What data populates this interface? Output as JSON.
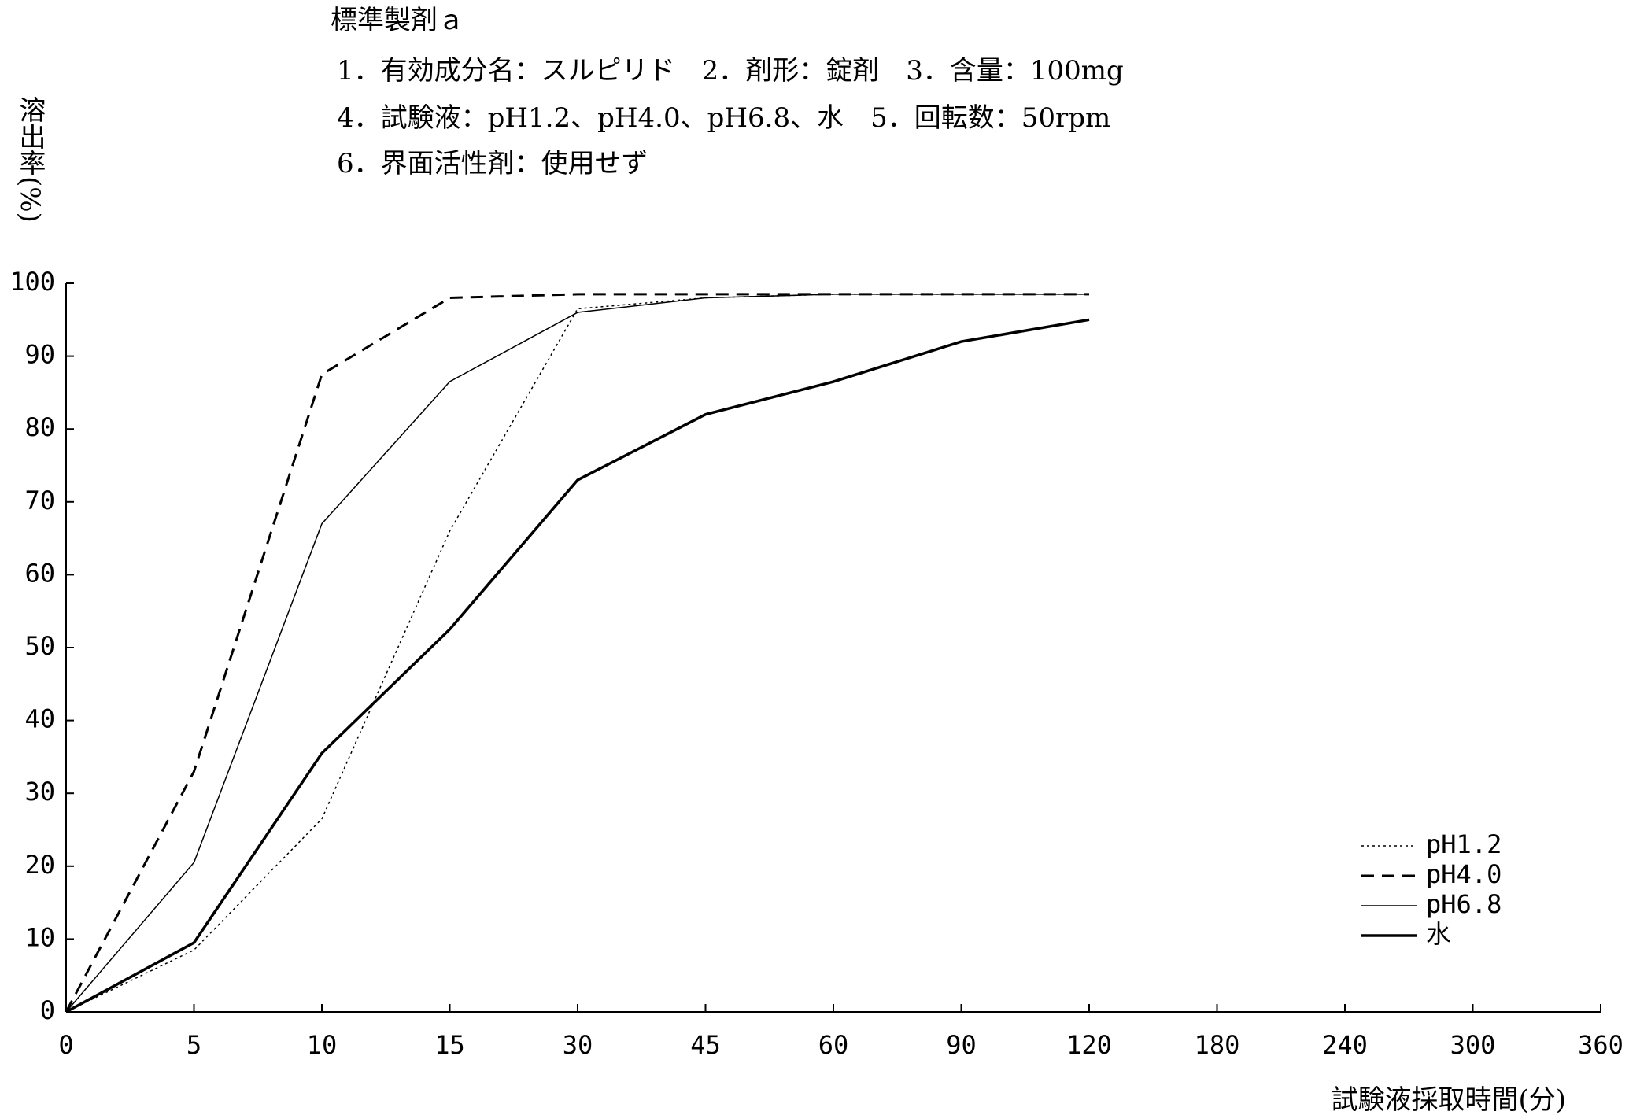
{
  "chart_data": {
    "type": "line",
    "title": "標準製剤ａ",
    "subtitle": [
      "1．有効成分名：スルピリド　2．剤形：錠剤　3．含量：100mg",
      "4．試験液：pH1.2、pH4.0、pH6.8、水　5．回転数：50rpm",
      "6．界面活性剤：使用せず"
    ],
    "ylabel": "溶出率(%)",
    "xlabel": "試験液採取時間(分)",
    "categories": [
      "0",
      "5",
      "10",
      "15",
      "30",
      "45",
      "60",
      "90",
      "120",
      "180",
      "240",
      "300",
      "360"
    ],
    "series": [
      {
        "name": "pH1.2",
        "color": "#000000",
        "style": "dotted",
        "values": [
          0,
          8.5,
          26.5,
          66,
          96.5,
          98,
          98.5,
          98.5,
          98.5,
          null,
          null,
          null,
          null
        ]
      },
      {
        "name": "pH4.0",
        "color": "#000000",
        "style": "dashed",
        "values": [
          0,
          33,
          87.5,
          98,
          98.5,
          98.5,
          98.5,
          98.5,
          98.5,
          null,
          null,
          null,
          null
        ]
      },
      {
        "name": "pH6.8",
        "color": "#000000",
        "style": "thin",
        "values": [
          0,
          20.5,
          67,
          86.5,
          96,
          98,
          98.5,
          98.5,
          98.5,
          null,
          null,
          null,
          null
        ]
      },
      {
        "name": "水",
        "color": "#000000",
        "style": "thick",
        "values": [
          0,
          9.5,
          35.5,
          52.5,
          73,
          82,
          86.5,
          92,
          95,
          null,
          null,
          null,
          null
        ]
      }
    ],
    "ylim": [
      0,
      100
    ],
    "yticks": [
      0,
      10,
      20,
      30,
      40,
      50,
      60,
      70,
      80,
      90,
      100
    ],
    "grid": false,
    "legend": "lower right"
  }
}
